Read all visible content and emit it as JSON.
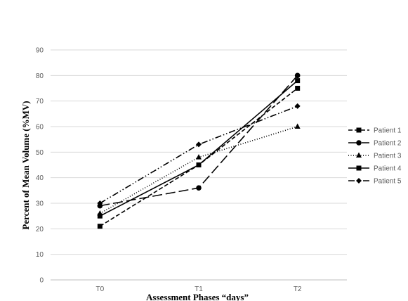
{
  "chart_data": {
    "type": "line",
    "title": "",
    "xlabel": "Assessment Phases “days”",
    "ylabel": "Percent of Mean Volume (%MV)",
    "categories": [
      "T0",
      "T1",
      "T2"
    ],
    "ylim": [
      0,
      90
    ],
    "yticks": [
      0,
      10,
      20,
      30,
      40,
      50,
      60,
      70,
      80,
      90
    ],
    "grid": true,
    "legend_position": "right",
    "series": [
      {
        "name": "Patient 1",
        "values": [
          21,
          45,
          75
        ],
        "marker": "square",
        "dash": "6,3"
      },
      {
        "name": "Patient 2",
        "values": [
          29,
          36,
          80
        ],
        "marker": "circle",
        "dash": "14,5"
      },
      {
        "name": "Patient 3",
        "values": [
          26,
          48,
          60
        ],
        "marker": "triangle",
        "dash": "1,2.5"
      },
      {
        "name": "Patient 4",
        "values": [
          25,
          45,
          78
        ],
        "marker": "square",
        "dash": ""
      },
      {
        "name": "Patient 5",
        "values": [
          30,
          53,
          68
        ],
        "marker": "diamond",
        "dash": "9,3,1.5,3,1.5,3"
      }
    ],
    "colors": {
      "series": "#000000",
      "grid": "#d9d9d9",
      "axis": "#bfbfbf",
      "tick_text": "#595959"
    }
  }
}
